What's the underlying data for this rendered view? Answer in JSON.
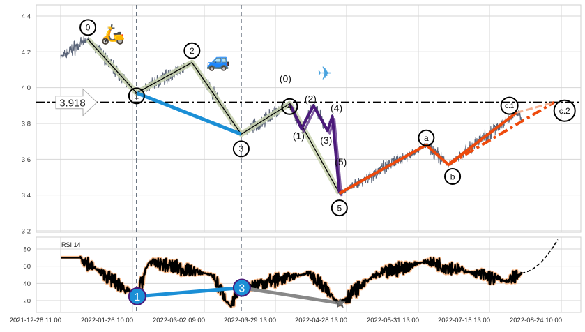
{
  "chart_data": [
    {
      "type": "line",
      "title": "",
      "xlabel": "",
      "ylabel": "",
      "ylim": [
        3.2,
        4.45
      ],
      "yticks": [
        3.2,
        3.4,
        3.6,
        3.8,
        4.0,
        4.2,
        4.4
      ],
      "grid": true,
      "price_color": "#5a6478",
      "price_range": {
        "start": "2021-12-28",
        "end": "2022-08-02",
        "start_value": 4.17,
        "end_value": 3.82
      },
      "target_level": {
        "value": 3.918,
        "label": "3.918",
        "style": "dash-dot",
        "color": "#000000"
      },
      "vertical_markers": [
        "2022-01-28",
        "2022-03-16"
      ],
      "wave_points": [
        {
          "label": "0",
          "date": "2022-01-08",
          "value": 4.27,
          "place": "above"
        },
        {
          "label": "1",
          "date": "2022-01-28",
          "value": 3.97,
          "place": "on"
        },
        {
          "label": "2",
          "date": "2022-02-24",
          "value": 4.14,
          "place": "above"
        },
        {
          "label": "3",
          "date": "2022-03-16",
          "value": 3.74,
          "place": "below"
        },
        {
          "label": "4",
          "date": "2022-04-04",
          "value": 3.91,
          "place": "on"
        },
        {
          "label": "5",
          "date": "2022-04-25",
          "value": 3.41,
          "place": "below"
        }
      ],
      "subwave_points": [
        {
          "label": "(0)",
          "date": "2022-04-04",
          "value": 3.91
        },
        {
          "label": "(1)",
          "date": "2022-04-09",
          "value": 3.77
        },
        {
          "label": "(2)",
          "date": "2022-04-14",
          "value": 3.9
        },
        {
          "label": "(3)",
          "date": "2022-04-20",
          "value": 3.76
        },
        {
          "label": "(4)",
          "date": "2022-04-22",
          "value": 3.84
        },
        {
          "label": "(5)",
          "date": "2022-04-25",
          "value": 3.41
        }
      ],
      "correction_points": [
        {
          "label": "a",
          "date": "2022-06-05",
          "value": 3.68,
          "place": "on"
        },
        {
          "label": "b",
          "date": "2022-06-19",
          "value": 3.57,
          "place": "below"
        },
        {
          "label": "c.1",
          "date": "2022-07-30",
          "value": 3.86,
          "place": "above"
        },
        {
          "label": "c.2",
          "date": "2022-08-20",
          "value": 3.918,
          "place": "below"
        }
      ],
      "icons": [
        {
          "name": "scooter-icon",
          "glyph": "🛵",
          "wave": "0"
        },
        {
          "name": "car-icon",
          "glyph": "🚙",
          "wave": "2"
        },
        {
          "name": "airplane-icon",
          "glyph": "✈",
          "wave": "(2)"
        }
      ],
      "colors": {
        "impulse": "#000000",
        "impulse_band": "#c9d3b0",
        "wave_1_3": "#1b8fd6",
        "subwave": "#4b1a7a",
        "correction": "#ee4a0c",
        "correction_light": "#f6b090"
      }
    },
    {
      "type": "line",
      "title": "RSI 14",
      "ylim": [
        5,
        95
      ],
      "yticks": [
        20,
        40,
        60,
        80
      ],
      "grid": true,
      "rsi_start": 70,
      "projection_end": {
        "date": "2022-08-22",
        "value": 91
      },
      "divergence": [
        {
          "label": "1",
          "date": "2022-01-28",
          "value": 25
        },
        {
          "label": "3",
          "date": "2022-03-16",
          "value": 35
        },
        {
          "label": "",
          "date": "2022-04-25",
          "value": 17,
          "marker": "star"
        }
      ],
      "colors": {
        "rsi": "#000000",
        "rsi_glow": "#f7b98a",
        "divergence": "#1b8fd6",
        "star_line": "#888888"
      }
    }
  ],
  "x_axis": {
    "ticks": [
      {
        "date": "2021-12-28",
        "label": "2021-12-28 11:00"
      },
      {
        "date": "2022-01-26",
        "label": "2022-01-26 10:00"
      },
      {
        "date": "2022-03-02",
        "label": "2022-03-02 09:00"
      },
      {
        "date": "2022-03-29",
        "label": "2022-03-29 13:00"
      },
      {
        "date": "2022-04-28",
        "label": "2022-04-28 13:00"
      },
      {
        "date": "2022-05-31",
        "label": "2022-05-31 13:00"
      },
      {
        "date": "2022-07-15",
        "label": "2022-07-15 13:00"
      },
      {
        "date": "2022-08-24",
        "label": "2022-08-24 10:00"
      }
    ]
  }
}
